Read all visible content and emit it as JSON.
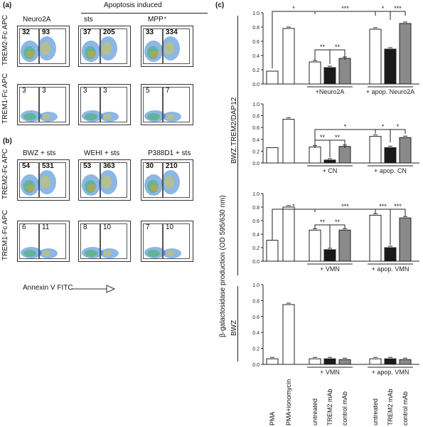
{
  "panel_a": {
    "label": "(a)",
    "header": "Apoptosis induced",
    "columns": [
      "Neuro2A",
      "sts",
      "MPP⁺"
    ],
    "row_labels": [
      "TREM2-Fc APC",
      "TREM1-Fc APC"
    ],
    "gates": [
      [
        [
          "32",
          "93"
        ],
        [
          "37",
          "205"
        ],
        [
          "33",
          "334"
        ]
      ],
      [
        [
          "3",
          "3"
        ],
        [
          "3",
          "3"
        ],
        [
          "5",
          "7"
        ]
      ]
    ]
  },
  "panel_b": {
    "label": "(b)",
    "columns": [
      "BWZ + sts",
      "WEHI + sts",
      "P388D1 + sts"
    ],
    "row_labels": [
      "TREM2-Fc APC",
      "TREM1-Fc APC"
    ],
    "xlabel": "Annexin V FITC",
    "gates": [
      [
        [
          "54",
          "531"
        ],
        [
          "53",
          "363"
        ],
        [
          "30",
          "210"
        ]
      ],
      [
        [
          "6",
          "11"
        ],
        [
          "8",
          "10"
        ],
        [
          "7",
          "10"
        ]
      ]
    ]
  },
  "panel_c": {
    "label": "(c)",
    "ylabel": "β-galactosidase production (OD 595/630 nm)",
    "group_label_top": "BWZ.TREM2/DAP12",
    "group_label_bottom": "BWZ",
    "category_labels": [
      "PMA",
      "PMA+ionomycin",
      "untreated",
      "TREM2 mAb",
      "control mAb",
      "untreated",
      "TREM2 mAb",
      "control mAb"
    ]
  },
  "chart_data": [
    {
      "type": "bar",
      "title": "",
      "xlabel": "",
      "ylabel": "",
      "ylim": [
        0,
        1.0
      ],
      "yticks": [
        "0.0",
        "0.2",
        "0.4",
        "0.6",
        "0.8",
        "1.0"
      ],
      "categories": [
        "PMA",
        "PMA+ionomycin",
        "untreated",
        "TREM2 mAb",
        "control mAb",
        "untreated",
        "TREM2 mAb",
        "control mAb"
      ],
      "values": [
        0.18,
        0.78,
        0.31,
        0.23,
        0.36,
        0.77,
        0.49,
        0.85
      ],
      "fills": [
        "white",
        "white",
        "white",
        "black",
        "gray",
        "white",
        "black",
        "gray"
      ],
      "group_labels": [
        "+Neuro2A",
        "+ apop. Neuro2A"
      ],
      "significance": [
        "*",
        "***",
        "**",
        "**",
        "*",
        "***"
      ]
    },
    {
      "type": "bar",
      "title": "",
      "xlabel": "",
      "ylabel": "",
      "ylim": [
        0,
        1.0
      ],
      "yticks": [
        "0.0",
        "0.2",
        "0.4",
        "0.6",
        "0.8",
        "1.0"
      ],
      "categories": [
        "PMA",
        "PMA+ionomycin",
        "untreated",
        "TREM2 mAb",
        "control mAb",
        "untreated",
        "TREM2 mAb",
        "control mAb"
      ],
      "values": [
        0.26,
        0.74,
        0.27,
        0.05,
        0.28,
        0.45,
        0.26,
        0.43
      ],
      "fills": [
        "white",
        "white",
        "white",
        "black",
        "gray",
        "white",
        "black",
        "gray"
      ],
      "group_labels": [
        "+ CN",
        "+ apop. CN"
      ],
      "significance": [
        "**",
        "**",
        "*",
        "*",
        "*"
      ]
    },
    {
      "type": "bar",
      "title": "",
      "xlabel": "",
      "ylabel": "",
      "ylim": [
        0,
        1.0
      ],
      "yticks": [
        "0.0",
        "0.2",
        "0.4",
        "0.6",
        "0.8",
        "1.0"
      ],
      "categories": [
        "PMA",
        "PMA+ionomycin",
        "untreated",
        "TREM2 mAb",
        "control mAb",
        "untreated",
        "TREM2 mAb",
        "control mAb"
      ],
      "values": [
        0.31,
        0.8,
        0.46,
        0.17,
        0.46,
        0.68,
        0.2,
        0.64
      ],
      "fills": [
        "white",
        "white",
        "white",
        "black",
        "gray",
        "white",
        "black",
        "gray"
      ],
      "group_labels": [
        "+ VMN",
        "+ apop. VMN"
      ],
      "significance": [
        "*",
        "***",
        "**",
        "**",
        "***",
        "***"
      ]
    },
    {
      "type": "bar",
      "title": "",
      "xlabel": "",
      "ylabel": "",
      "ylim": [
        0,
        1.0
      ],
      "yticks": [
        "0.0",
        "0.2",
        "0.4",
        "0.6",
        "0.8",
        "1.0"
      ],
      "categories": [
        "PMA",
        "PMA+ionomycin",
        "untreated",
        "TREM2 mAb",
        "control mAb",
        "untreated",
        "TREM2 mAb",
        "control mAb"
      ],
      "values": [
        0.07,
        0.75,
        0.07,
        0.07,
        0.06,
        0.07,
        0.07,
        0.06
      ],
      "fills": [
        "white",
        "white",
        "white",
        "black",
        "gray",
        "white",
        "black",
        "gray"
      ],
      "group_labels": [
        "+ VMN",
        "+ apop. VMN"
      ],
      "significance": []
    }
  ]
}
